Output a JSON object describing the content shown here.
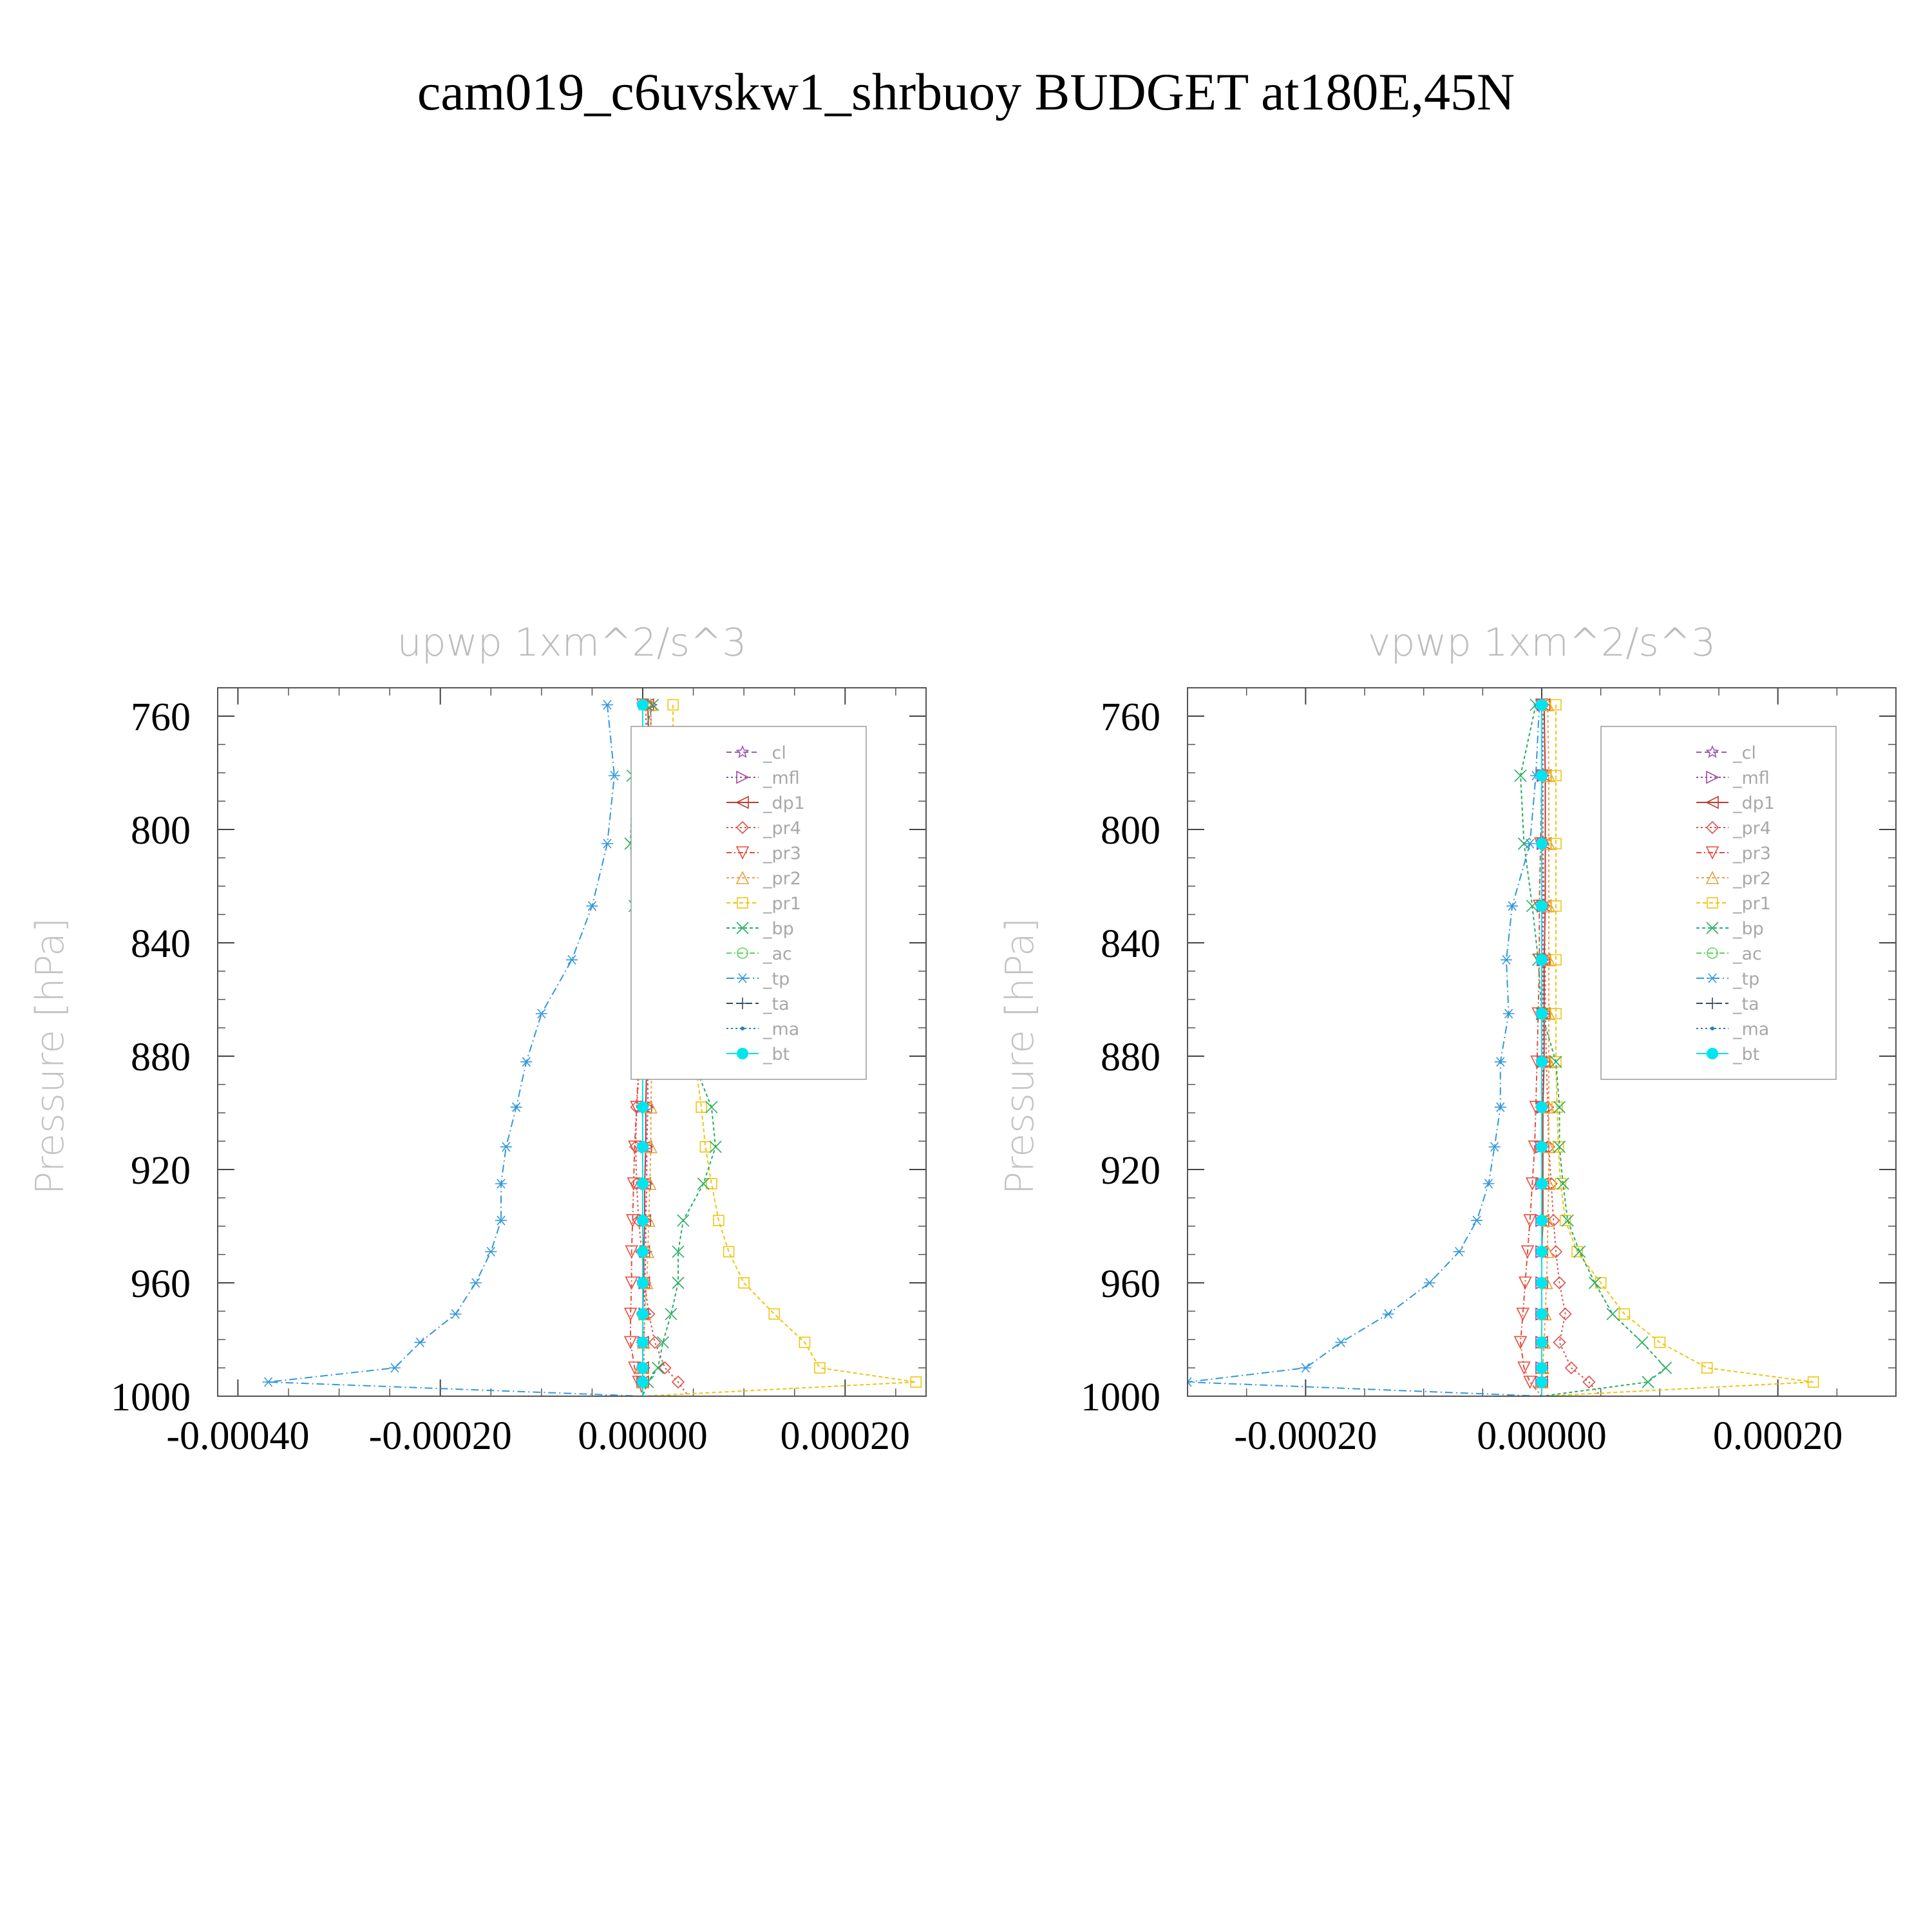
{
  "figure_title": "cam019_c6uvskw1_shrbuoy  BUDGET at180E,45N",
  "chart_data": [
    {
      "type": "line",
      "title": "upwp    1xm^2/s^3",
      "ylabel": "Pressure  [hPa]",
      "xlabel": "",
      "xlim": [
        -0.00042,
        0.00028
      ],
      "ylim": [
        1000,
        750
      ],
      "xticks": [
        -0.0004,
        -0.0002,
        0.0,
        0.0002
      ],
      "xtick_labels": [
        "-0.00040",
        "-0.00020",
        "0.00000",
        "0.00020"
      ],
      "yticks": [
        760,
        800,
        840,
        880,
        920,
        960,
        1000
      ],
      "ytick_labels": [
        "760",
        "800",
        "840",
        "880",
        "920",
        "960",
        "1000"
      ],
      "y": [
        756,
        781,
        805,
        827,
        846,
        865,
        882,
        898,
        912,
        925,
        938,
        949,
        960,
        971,
        981,
        990,
        995,
        1000
      ],
      "legend_placement": "upper-right",
      "series": [
        {
          "name": "_cl",
          "color": "#9b59b6",
          "marker": "star",
          "dash": "8,5",
          "values": [
            0,
            0,
            0,
            0,
            0,
            0,
            0,
            0,
            0,
            0,
            0,
            0,
            0,
            0,
            0,
            0,
            0,
            0
          ]
        },
        {
          "name": "_mfl",
          "color": "#a04a9a",
          "marker": "tri-right",
          "dash": "3,4",
          "values": [
            8e-06,
            8e-06,
            8e-06,
            7e-06,
            6e-06,
            6e-06,
            5e-06,
            5e-06,
            4e-06,
            4e-06,
            3e-06,
            3e-06,
            2e-06,
            2e-06,
            1e-06,
            1e-06,
            0.0,
            0.0
          ]
        },
        {
          "name": "_dp1",
          "color": "#c0392b",
          "marker": "tri-left",
          "dash": "",
          "values": [
            5e-06,
            7e-06,
            7e-06,
            6e-06,
            5e-06,
            4e-06,
            4e-06,
            3e-06,
            3e-06,
            2e-06,
            2e-06,
            1e-06,
            1e-06,
            0.0,
            0.0,
            0.0,
            0.0,
            0.0
          ]
        },
        {
          "name": "_pr4",
          "color": "#d9534f",
          "marker": "diamond",
          "dash": "3,4",
          "values": [
            3e-06,
            4e-06,
            5e-06,
            6e-06,
            4e-06,
            1e-06,
            -3e-06,
            -6e-06,
            -7e-06,
            -6e-06,
            -4e-06,
            -1e-06,
            2e-06,
            6e-06,
            1.2e-05,
            2.2e-05,
            3.5e-05,
            4.5e-05
          ]
        },
        {
          "name": "_pr3",
          "color": "#e74c3c",
          "marker": "tri-down",
          "dash": "8,4,2,4",
          "values": [
            0.0,
            0.0,
            0.0,
            -1e-06,
            -2e-06,
            -3e-06,
            -4e-06,
            -6e-06,
            -8e-06,
            -9e-06,
            -1e-05,
            -1.1e-05,
            -1.1e-05,
            -1.2e-05,
            -1.2e-05,
            -8e-06,
            -4e-06,
            0.0
          ]
        },
        {
          "name": "_pr2",
          "color": "#e6a23c",
          "marker": "tri-up",
          "dash": "4,4",
          "values": [
            8e-06,
            9e-06,
            9e-06,
            9e-06,
            9e-06,
            9e-06,
            9e-06,
            8e-06,
            8e-06,
            7e-06,
            6e-06,
            5e-06,
            4e-06,
            2e-06,
            1e-06,
            0.0,
            0.0,
            0.0
          ]
        },
        {
          "name": "_pr1",
          "color": "#f1c40f",
          "marker": "square",
          "dash": "6,4",
          "values": [
            3e-05,
            3e-05,
            3.5e-05,
            4e-05,
            4.5e-05,
            4.8e-05,
            5.2e-05,
            5.8e-05,
            6.2e-05,
            6.8e-05,
            7.5e-05,
            8.5e-05,
            0.0001,
            0.00013,
            0.00016,
            0.000175,
            0.00027,
            0.0
          ]
        },
        {
          "name": "_bp",
          "color": "#27ae60",
          "marker": "x",
          "dash": "5,4",
          "values": [
            1e-05,
            -1e-05,
            -1.2e-05,
            -8e-06,
            8e-06,
            3.5e-05,
            5e-05,
            6.8e-05,
            7.2e-05,
            6e-05,
            4e-05,
            3.5e-05,
            3.5e-05,
            2.8e-05,
            2e-05,
            1.5e-05,
            5e-06,
            0.0
          ]
        },
        {
          "name": "_ac",
          "color": "#5dd35d",
          "marker": "circle",
          "dash": "8,4,2,4",
          "values": [
            0,
            0,
            0,
            0,
            0,
            0,
            0,
            0,
            0,
            0,
            0,
            0,
            0,
            0,
            0,
            0,
            0,
            0
          ]
        },
        {
          "name": "_tp",
          "color": "#3498db",
          "marker": "asterisk",
          "dash": "12,5,2,5",
          "values": [
            -3.5e-05,
            -2.8e-05,
            -3.5e-05,
            -5e-05,
            -7e-05,
            -0.0001,
            -0.000115,
            -0.000125,
            -0.000135,
            -0.00014,
            -0.00014,
            -0.00015,
            -0.000165,
            -0.000185,
            -0.00022,
            -0.000245,
            -0.00037,
            0.0
          ]
        },
        {
          "name": "_ta",
          "color": "#34495e",
          "marker": "plus",
          "dash": "10,5",
          "values": [
            0,
            0,
            0,
            0,
            0,
            0,
            0,
            0,
            0,
            0,
            0,
            0,
            0,
            0,
            0,
            0,
            0,
            0
          ]
        },
        {
          "name": "_ma",
          "color": "#2c7fb8",
          "marker": "dot",
          "dash": "3,4",
          "values": [
            0,
            0,
            0,
            0,
            0,
            0,
            0,
            0,
            0,
            0,
            0,
            0,
            0,
            0,
            0,
            0,
            0,
            0
          ]
        },
        {
          "name": "_bt",
          "color": "#00e5ee",
          "marker": "filled-circle",
          "dash": "",
          "values": [
            0,
            0,
            0,
            0,
            0,
            0,
            0,
            0,
            0,
            0,
            0,
            0,
            0,
            0,
            0,
            0,
            0,
            0
          ]
        }
      ]
    },
    {
      "type": "line",
      "title": "vpwp    1xm^2/s^3",
      "ylabel": "Pressure  [hPa]",
      "xlabel": "",
      "xlim": [
        -0.0003,
        0.0003
      ],
      "ylim": [
        1000,
        750
      ],
      "xticks": [
        -0.0002,
        0.0,
        0.0002
      ],
      "xtick_labels": [
        "-0.00020",
        "0.00000",
        "0.00020"
      ],
      "yticks": [
        760,
        800,
        840,
        880,
        920,
        960,
        1000
      ],
      "ytick_labels": [
        "760",
        "800",
        "840",
        "880",
        "920",
        "960",
        "1000"
      ],
      "y": [
        756,
        781,
        805,
        827,
        846,
        865,
        882,
        898,
        912,
        925,
        938,
        949,
        960,
        971,
        981,
        990,
        995,
        1000
      ],
      "legend_placement": "upper-right",
      "series": [
        {
          "name": "_cl",
          "color": "#9b59b6",
          "marker": "star",
          "dash": "8,5",
          "values": [
            0,
            0,
            0,
            0,
            0,
            0,
            0,
            0,
            0,
            0,
            0,
            0,
            0,
            0,
            0,
            0,
            0,
            0
          ]
        },
        {
          "name": "_mfl",
          "color": "#a04a9a",
          "marker": "tri-right",
          "dash": "3,4",
          "values": [
            1e-06,
            1e-06,
            1e-06,
            1e-06,
            1e-06,
            1e-06,
            1e-06,
            1e-06,
            0.0,
            0.0,
            0.0,
            0.0,
            0.0,
            0.0,
            0.0,
            0.0,
            0.0,
            0.0
          ]
        },
        {
          "name": "_dp1",
          "color": "#c0392b",
          "marker": "tri-left",
          "dash": "",
          "values": [
            2e-06,
            3e-06,
            3e-06,
            3e-06,
            2e-06,
            2e-06,
            2e-06,
            1e-06,
            1e-06,
            1e-06,
            1e-06,
            0.0,
            0.0,
            0.0,
            0.0,
            0.0,
            0.0,
            0.0
          ]
        },
        {
          "name": "_pr4",
          "color": "#d9534f",
          "marker": "diamond",
          "dash": "3,4",
          "values": [
            0.0,
            0.0,
            1e-06,
            2e-06,
            3e-06,
            3e-06,
            4e-06,
            5e-06,
            6e-06,
            8e-06,
            1e-05,
            1.2e-05,
            1.5e-05,
            2e-05,
            1.5e-05,
            2.5e-05,
            4e-05,
            5e-05
          ]
        },
        {
          "name": "_pr3",
          "color": "#e74c3c",
          "marker": "tri-down",
          "dash": "8,4,2,4",
          "values": [
            0.0,
            0.0,
            -1e-06,
            -2e-06,
            -2e-06,
            -3e-06,
            -4e-06,
            -5e-06,
            -6e-06,
            -8e-06,
            -1e-05,
            -1.2e-05,
            -1.4e-05,
            -1.6e-05,
            -1.8e-05,
            -1.5e-05,
            -1e-05,
            0.0
          ]
        },
        {
          "name": "_pr2",
          "color": "#e6a23c",
          "marker": "tri-up",
          "dash": "4,4",
          "values": [
            5e-06,
            6e-06,
            6e-06,
            6e-06,
            6e-06,
            6e-06,
            6e-06,
            6e-06,
            6e-06,
            6e-06,
            5e-06,
            5e-06,
            4e-06,
            3e-06,
            2e-06,
            1e-06,
            0.0,
            0.0
          ]
        },
        {
          "name": "_pr1",
          "color": "#f1c40f",
          "marker": "square",
          "dash": "6,4",
          "values": [
            1.2e-05,
            1.2e-05,
            1.2e-05,
            1.2e-05,
            1.2e-05,
            1.2e-05,
            1.2e-05,
            1.3e-05,
            1.4e-05,
            1.6e-05,
            2e-05,
            3e-05,
            5e-05,
            7e-05,
            0.0001,
            0.00014,
            0.00023,
            0.0
          ]
        },
        {
          "name": "_bp",
          "color": "#27ae60",
          "marker": "x",
          "dash": "5,4",
          "values": [
            -5e-06,
            -1.8e-05,
            -1.5e-05,
            -8e-06,
            -3e-06,
            0.0,
            1.2e-05,
            1.5e-05,
            1.5e-05,
            1.8e-05,
            2.2e-05,
            3.2e-05,
            4.5e-05,
            6e-05,
            8.5e-05,
            0.000105,
            9e-05,
            0.0
          ]
        },
        {
          "name": "_ac",
          "color": "#5dd35d",
          "marker": "circle",
          "dash": "8,4,2,4",
          "values": [
            0,
            0,
            0,
            0,
            0,
            0,
            0,
            0,
            0,
            0,
            0,
            0,
            0,
            0,
            0,
            0,
            0,
            0
          ]
        },
        {
          "name": "_tp",
          "color": "#3498db",
          "marker": "asterisk",
          "dash": "12,5,2,5",
          "values": [
            -2e-06,
            -5e-06,
            -1e-05,
            -2.5e-05,
            -3e-05,
            -2.8e-05,
            -3.5e-05,
            -3.5e-05,
            -4e-05,
            -4.5e-05,
            -5.5e-05,
            -7e-05,
            -9.5e-05,
            -0.00013,
            -0.00017,
            -0.0002,
            -0.0003,
            0.0
          ]
        },
        {
          "name": "_ta",
          "color": "#34495e",
          "marker": "plus",
          "dash": "10,5",
          "values": [
            0,
            0,
            0,
            0,
            0,
            0,
            0,
            0,
            0,
            0,
            0,
            0,
            0,
            0,
            0,
            0,
            0,
            0
          ]
        },
        {
          "name": "_ma",
          "color": "#2c7fb8",
          "marker": "dot",
          "dash": "3,4",
          "values": [
            0,
            0,
            0,
            0,
            0,
            0,
            0,
            0,
            0,
            0,
            0,
            0,
            0,
            0,
            0,
            0,
            0,
            0
          ]
        },
        {
          "name": "_bt",
          "color": "#00e5ee",
          "marker": "filled-circle",
          "dash": "",
          "values": [
            0,
            0,
            0,
            0,
            0,
            0,
            0,
            0,
            0,
            0,
            0,
            0,
            0,
            0,
            0,
            0,
            0,
            0
          ]
        }
      ]
    }
  ]
}
